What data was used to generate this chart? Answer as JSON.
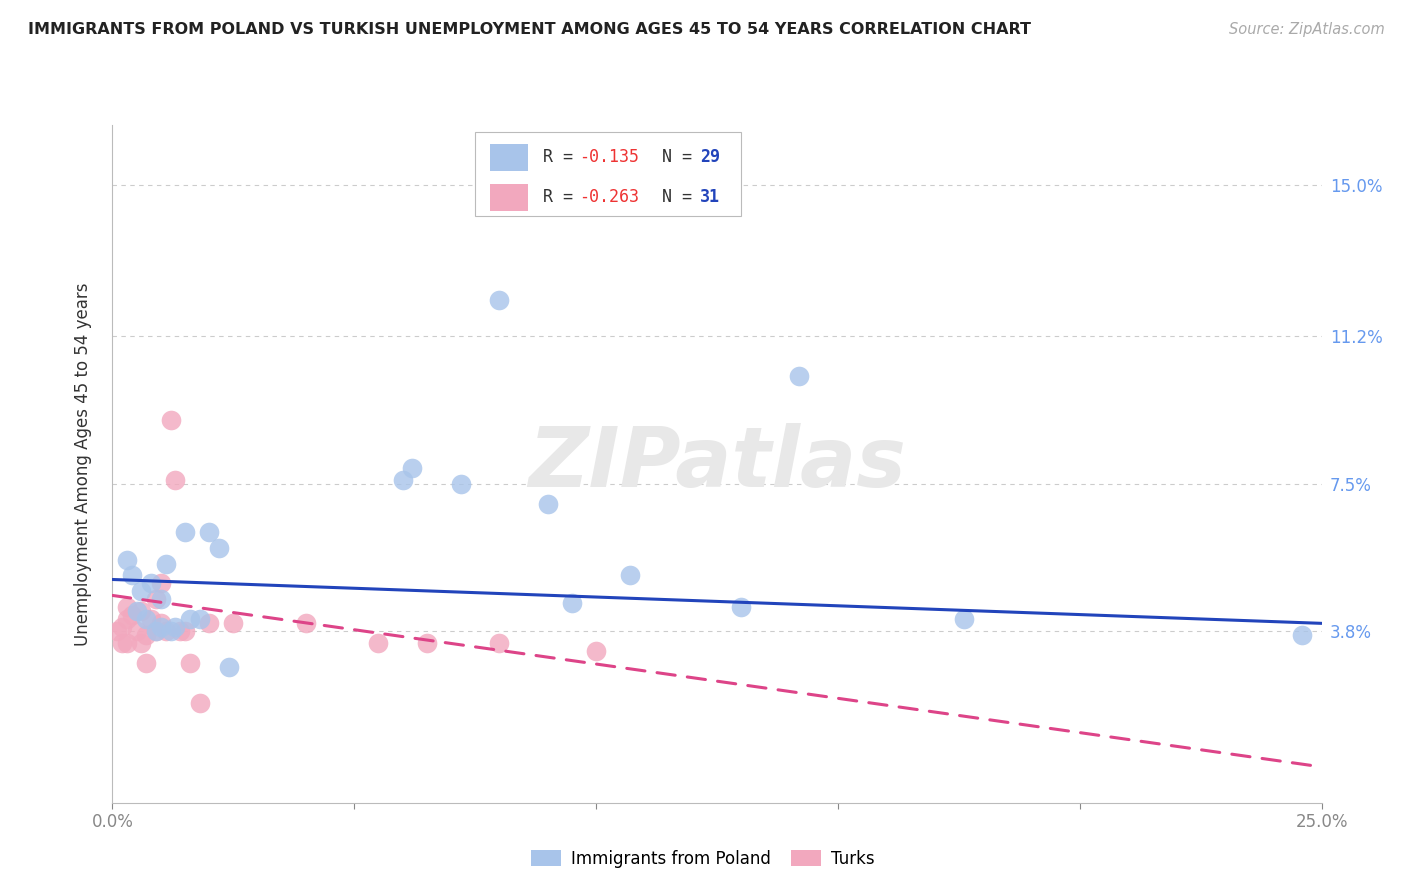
{
  "title": "IMMIGRANTS FROM POLAND VS TURKISH UNEMPLOYMENT AMONG AGES 45 TO 54 YEARS CORRELATION CHART",
  "source": "Source: ZipAtlas.com",
  "ylabel_label": "Unemployment Among Ages 45 to 54 years",
  "ylabel_ticks_labels": [
    "3.8%",
    "7.5%",
    "11.2%",
    "15.0%"
  ],
  "ylabel_ticks_values": [
    0.038,
    0.075,
    0.112,
    0.15
  ],
  "xmin": 0.0,
  "xmax": 0.25,
  "ymin": -0.005,
  "ymax": 0.165,
  "legend1_r": "-0.135",
  "legend1_n": "29",
  "legend2_r": "-0.263",
  "legend2_n": "31",
  "legend1_label": "Immigrants from Poland",
  "legend2_label": "Turks",
  "blue_color": "#a8c4ea",
  "pink_color": "#f2a8be",
  "blue_line_color": "#2244bb",
  "pink_line_color": "#dd4488",
  "blue_scatter": [
    [
      0.003,
      0.056
    ],
    [
      0.004,
      0.052
    ],
    [
      0.005,
      0.043
    ],
    [
      0.006,
      0.048
    ],
    [
      0.007,
      0.041
    ],
    [
      0.008,
      0.05
    ],
    [
      0.009,
      0.038
    ],
    [
      0.01,
      0.039
    ],
    [
      0.01,
      0.046
    ],
    [
      0.011,
      0.055
    ],
    [
      0.012,
      0.038
    ],
    [
      0.013,
      0.039
    ],
    [
      0.015,
      0.063
    ],
    [
      0.016,
      0.041
    ],
    [
      0.018,
      0.041
    ],
    [
      0.02,
      0.063
    ],
    [
      0.022,
      0.059
    ],
    [
      0.024,
      0.029
    ],
    [
      0.06,
      0.076
    ],
    [
      0.062,
      0.079
    ],
    [
      0.072,
      0.075
    ],
    [
      0.08,
      0.121
    ],
    [
      0.09,
      0.07
    ],
    [
      0.095,
      0.045
    ],
    [
      0.107,
      0.052
    ],
    [
      0.13,
      0.044
    ],
    [
      0.142,
      0.102
    ],
    [
      0.176,
      0.041
    ],
    [
      0.246,
      0.037
    ]
  ],
  "pink_scatter": [
    [
      0.001,
      0.038
    ],
    [
      0.002,
      0.035
    ],
    [
      0.002,
      0.039
    ],
    [
      0.003,
      0.041
    ],
    [
      0.003,
      0.044
    ],
    [
      0.003,
      0.035
    ],
    [
      0.004,
      0.042
    ],
    [
      0.005,
      0.038
    ],
    [
      0.006,
      0.035
    ],
    [
      0.006,
      0.043
    ],
    [
      0.007,
      0.037
    ],
    [
      0.007,
      0.03
    ],
    [
      0.008,
      0.041
    ],
    [
      0.009,
      0.046
    ],
    [
      0.009,
      0.038
    ],
    [
      0.01,
      0.04
    ],
    [
      0.01,
      0.05
    ],
    [
      0.011,
      0.038
    ],
    [
      0.012,
      0.091
    ],
    [
      0.013,
      0.076
    ],
    [
      0.014,
      0.038
    ],
    [
      0.015,
      0.038
    ],
    [
      0.016,
      0.03
    ],
    [
      0.018,
      0.02
    ],
    [
      0.02,
      0.04
    ],
    [
      0.025,
      0.04
    ],
    [
      0.04,
      0.04
    ],
    [
      0.055,
      0.035
    ],
    [
      0.065,
      0.035
    ],
    [
      0.08,
      0.035
    ],
    [
      0.1,
      0.033
    ]
  ],
  "blue_trend_x": [
    0.0,
    0.25
  ],
  "blue_trend_y": [
    0.051,
    0.04
  ],
  "pink_trend_x": [
    0.0,
    0.25
  ],
  "pink_trend_y": [
    0.047,
    0.004
  ],
  "watermark": "ZIPatlas",
  "background_color": "#ffffff",
  "grid_color": "#cccccc",
  "title_fontsize": 11.5,
  "source_fontsize": 10.5,
  "axis_label_fontsize": 12,
  "tick_fontsize": 12,
  "legend_fontsize": 12,
  "scatter_size": 200
}
